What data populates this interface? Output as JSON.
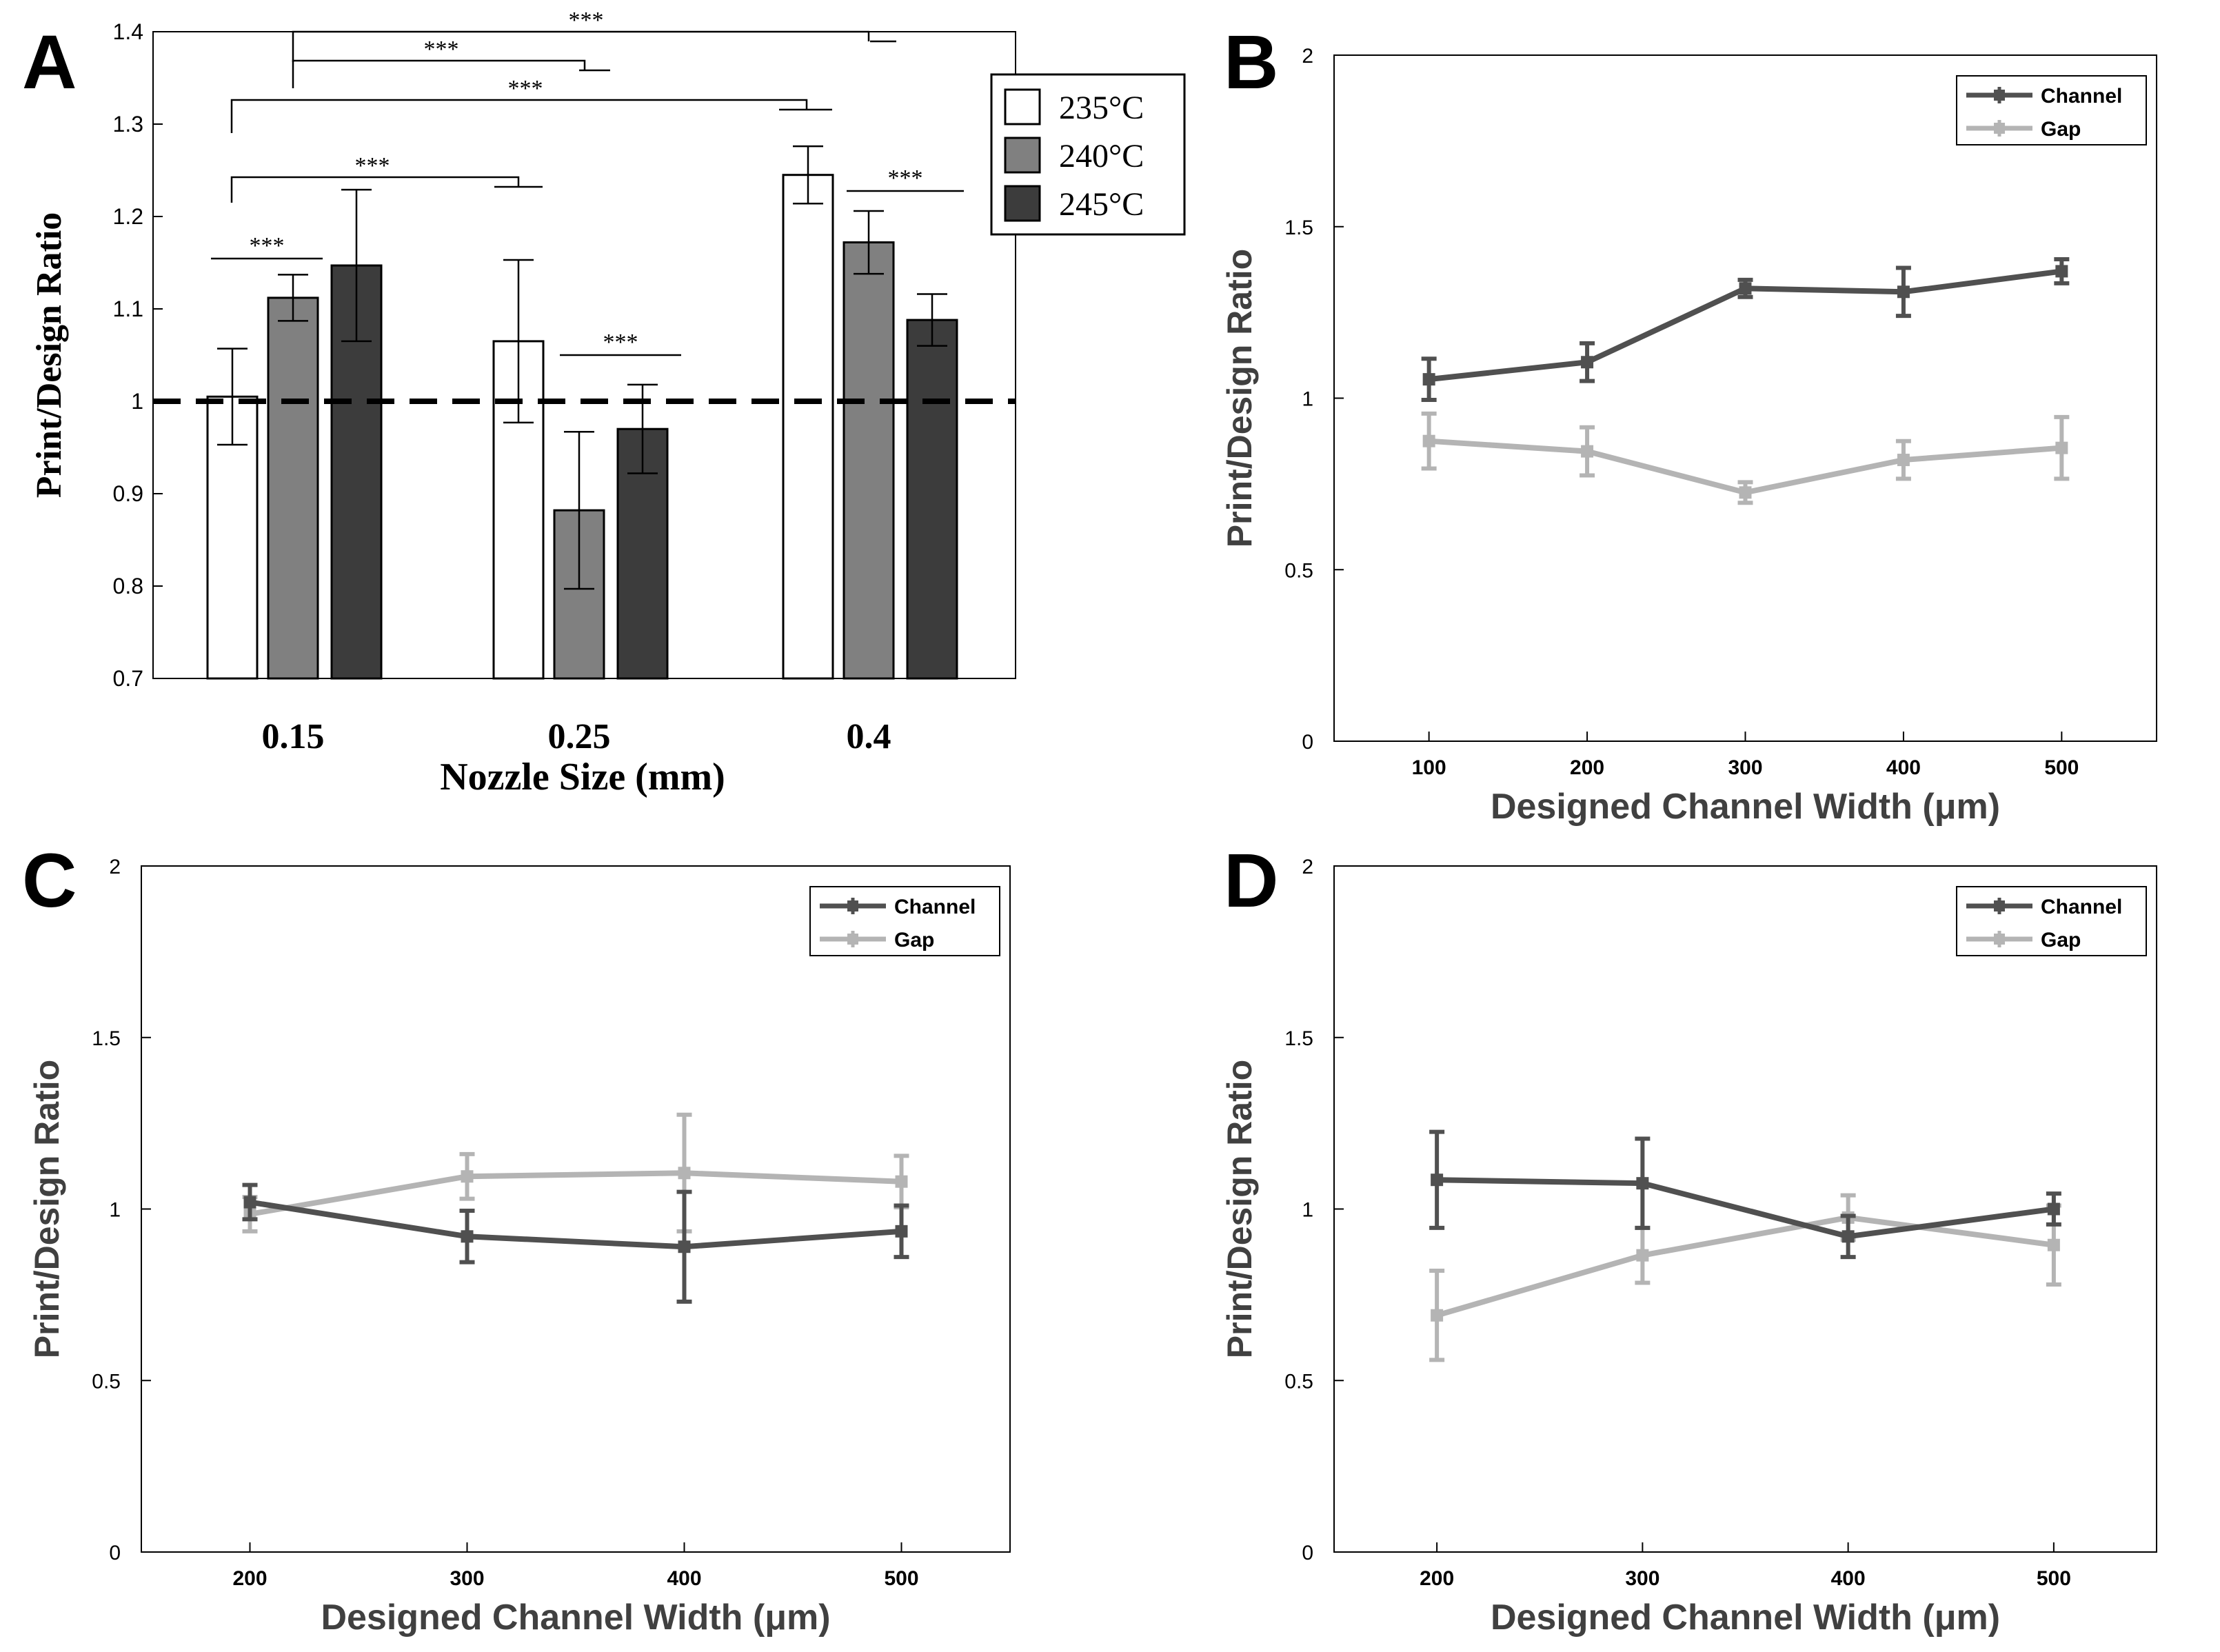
{
  "chart_data": [
    {
      "panel": "A",
      "type": "bar",
      "title": "",
      "xlabel": "Nozzle Size (mm)",
      "ylabel": "Print/Design Ratio",
      "ylim": [
        0.7,
        1.4
      ],
      "yticks": [
        "0.7",
        "0.8",
        "0.9",
        "1",
        "1.1",
        "1.2",
        "1.3",
        "1.4"
      ],
      "categories": [
        "0.15",
        "0.25",
        "0.4"
      ],
      "reference_line": 1,
      "legend_position": "top-right",
      "series": [
        {
          "name": "235°C",
          "color": "#ffffff",
          "values": [
            1.005,
            1.065,
            1.245
          ],
          "errors": [
            0.052,
            0.088,
            0.031
          ]
        },
        {
          "name": "240°C",
          "color": "#808080",
          "values": [
            1.112,
            0.882,
            1.172
          ],
          "errors": [
            0.025,
            0.085,
            0.034
          ]
        },
        {
          "name": "245°C",
          "color": "#3c3c3c",
          "values": [
            1.147,
            0.97,
            1.088
          ],
          "errors": [
            0.082,
            0.048,
            0.028
          ]
        }
      ],
      "significance_label": "***"
    },
    {
      "panel": "B",
      "type": "line",
      "xlabel": "Designed Channel Width (μm)",
      "ylabel": "Print/Design Ratio",
      "ylim": [
        0,
        2
      ],
      "yticks": [
        "0",
        "0.5",
        "1",
        "1.5",
        "2"
      ],
      "x": [
        100,
        200,
        300,
        400,
        500
      ],
      "xticks": [
        "100",
        "200",
        "300",
        "400",
        "500"
      ],
      "xlim": [
        40,
        560
      ],
      "legend_position": "top-right",
      "series": [
        {
          "name": "Channel",
          "color": "#505050",
          "values": [
            1.055,
            1.105,
            1.32,
            1.31,
            1.37
          ],
          "errors": [
            0.06,
            0.055,
            0.025,
            0.07,
            0.035
          ]
        },
        {
          "name": "Gap",
          "color": "#b4b4b4",
          "values": [
            0.875,
            0.845,
            0.725,
            0.82,
            0.855
          ],
          "errors": [
            0.08,
            0.07,
            0.03,
            0.055,
            0.09
          ]
        }
      ]
    },
    {
      "panel": "C",
      "type": "line",
      "xlabel": "Designed Channel Width (μm)",
      "ylabel": "Print/Design Ratio",
      "ylim": [
        0,
        2
      ],
      "yticks": [
        "0",
        "0.5",
        "1",
        "1.5",
        "2"
      ],
      "x": [
        200,
        300,
        400,
        500
      ],
      "xticks": [
        "200",
        "300",
        "400",
        "500"
      ],
      "xlim": [
        150,
        550
      ],
      "legend_position": "top-right",
      "series": [
        {
          "name": "Channel",
          "color": "#505050",
          "values": [
            1.02,
            0.92,
            0.89,
            0.935
          ],
          "errors": [
            0.05,
            0.075,
            0.16,
            0.075
          ]
        },
        {
          "name": "Gap",
          "color": "#b4b4b4",
          "values": [
            0.985,
            1.095,
            1.105,
            1.08
          ],
          "errors": [
            0.05,
            0.065,
            0.17,
            0.075
          ]
        }
      ]
    },
    {
      "panel": "D",
      "type": "line",
      "xlabel": "Designed Channel Width (μm)",
      "ylabel": "Print/Design Ratio",
      "ylim": [
        0,
        2
      ],
      "yticks": [
        "0",
        "0.5",
        "1",
        "1.5",
        "2"
      ],
      "x": [
        200,
        300,
        400,
        500
      ],
      "xticks": [
        "200",
        "300",
        "400",
        "500"
      ],
      "xlim": [
        150,
        550
      ],
      "legend_position": "top-right",
      "series": [
        {
          "name": "Channel",
          "color": "#505050",
          "values": [
            1.085,
            1.075,
            0.92,
            1.0
          ],
          "errors": [
            0.14,
            0.13,
            0.06,
            0.045
          ]
        },
        {
          "name": "Gap",
          "color": "#b4b4b4",
          "values": [
            0.69,
            0.865,
            0.975,
            0.895
          ],
          "errors": [
            0.13,
            0.08,
            0.065,
            0.115
          ]
        }
      ]
    }
  ]
}
